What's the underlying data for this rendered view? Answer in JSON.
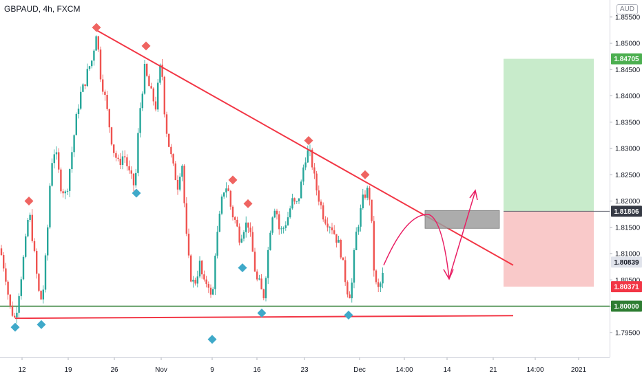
{
  "header": {
    "symbol_label": "GBPAUD, 4h, FXCM",
    "currency_button": "AUD"
  },
  "chart_data": {
    "type": "candlestick",
    "symbol": "GBPAUD",
    "interval": "4h",
    "source": "FXCM",
    "ylim": [
      1.7915,
      1.8555
    ],
    "y_ticks": [
      "1.79500",
      "1.80000",
      "1.80500",
      "1.81000",
      "1.81500",
      "1.82000",
      "1.82500",
      "1.83000",
      "1.83500",
      "1.84000",
      "1.84500",
      "1.85000",
      "1.85500"
    ],
    "x_ticks": [
      "12",
      "19",
      "26",
      "Nov",
      "9",
      "16",
      "23",
      "Dec",
      "14:00",
      "14",
      "21",
      "14:00",
      "2021"
    ],
    "price_labels": [
      {
        "label": "1.84705",
        "value": 1.84705,
        "color": "#4caf50"
      },
      {
        "label": "1.81806",
        "value": 1.81806,
        "color": "#363a45"
      },
      {
        "label": "1.80839",
        "value": 1.80839,
        "color": "#e0e3eb"
      },
      {
        "label": "1.80371",
        "value": 1.80371,
        "color": "#f23645"
      },
      {
        "label": "1.80000",
        "value": 1.8,
        "color": "#2e7d32"
      }
    ],
    "candle_colors": {
      "up": "#26a69a",
      "down": "#ef5350"
    },
    "path_closes": [
      [
        0,
        1.811
      ],
      [
        8,
        1.806
      ],
      [
        14,
        1.8
      ],
      [
        22,
        1.7975
      ],
      [
        30,
        1.805
      ],
      [
        38,
        1.813
      ],
      [
        42,
        1.8185
      ],
      [
        48,
        1.812
      ],
      [
        54,
        1.805
      ],
      [
        58,
        1.801
      ],
      [
        62,
        1.802
      ],
      [
        68,
        1.812
      ],
      [
        74,
        1.827
      ],
      [
        80,
        1.83
      ],
      [
        88,
        1.823
      ],
      [
        96,
        1.821
      ],
      [
        104,
        1.829
      ],
      [
        110,
        1.835
      ],
      [
        116,
        1.84
      ],
      [
        122,
        1.842
      ],
      [
        128,
        1.845
      ],
      [
        134,
        1.847
      ],
      [
        140,
        1.8525
      ],
      [
        146,
        1.844
      ],
      [
        152,
        1.84
      ],
      [
        158,
        1.835
      ],
      [
        164,
        1.83
      ],
      [
        172,
        1.827
      ],
      [
        180,
        1.829
      ],
      [
        188,
        1.825
      ],
      [
        196,
        1.8225
      ],
      [
        202,
        1.836
      ],
      [
        210,
        1.845
      ],
      [
        218,
        1.841
      ],
      [
        226,
        1.838
      ],
      [
        234,
        1.847
      ],
      [
        240,
        1.835
      ],
      [
        246,
        1.83
      ],
      [
        252,
        1.826
      ],
      [
        258,
        1.823
      ],
      [
        264,
        1.828
      ],
      [
        270,
        1.814
      ],
      [
        276,
        1.806
      ],
      [
        282,
        1.804
      ],
      [
        290,
        1.808
      ],
      [
        296,
        1.804
      ],
      [
        302,
        1.805
      ],
      [
        308,
        1.8
      ],
      [
        312,
        1.81
      ],
      [
        318,
        1.816
      ],
      [
        324,
        1.822
      ],
      [
        330,
        1.823
      ],
      [
        336,
        1.818
      ],
      [
        342,
        1.816
      ],
      [
        348,
        1.813
      ],
      [
        354,
        1.815
      ],
      [
        360,
        1.816
      ],
      [
        366,
        1.811
      ],
      [
        372,
        1.805
      ],
      [
        378,
        1.804
      ],
      [
        382,
        1.801
      ],
      [
        388,
        1.809
      ],
      [
        394,
        1.817
      ],
      [
        400,
        1.8195
      ],
      [
        406,
        1.814
      ],
      [
        412,
        1.815
      ],
      [
        418,
        1.817
      ],
      [
        424,
        1.82
      ],
      [
        430,
        1.819
      ],
      [
        436,
        1.822
      ],
      [
        442,
        1.828
      ],
      [
        448,
        1.8295
      ],
      [
        452,
        1.828
      ],
      [
        458,
        1.823
      ],
      [
        464,
        1.82
      ],
      [
        470,
        1.817
      ],
      [
        476,
        1.816
      ],
      [
        482,
        1.815
      ],
      [
        488,
        1.813
      ],
      [
        494,
        1.811
      ],
      [
        500,
        1.806
      ],
      [
        506,
        1.802
      ],
      [
        510,
        1.803
      ],
      [
        516,
        1.813
      ],
      [
        522,
        1.817
      ],
      [
        528,
        1.821
      ],
      [
        534,
        1.822
      ],
      [
        538,
        1.82
      ],
      [
        542,
        1.808
      ],
      [
        546,
        1.804
      ],
      [
        550,
        1.803
      ],
      [
        556,
        1.806
      ],
      [
        558,
        1.807
      ]
    ],
    "annotations": {
      "resistance_line": {
        "from": [
          140,
          1.8525
        ],
        "to": [
          745,
          1.8078
        ],
        "color": "#f23645"
      },
      "support_line": {
        "from": [
          22,
          1.7977
        ],
        "to": [
          745,
          1.7982
        ],
        "color": "#f23645"
      },
      "support_level": {
        "value": 1.8,
        "color": "#2e7d32"
      },
      "entry_zone": {
        "from": [
          617,
          1.8182
        ],
        "to": [
          725,
          1.8148
        ]
      },
      "position": {
        "type": "short",
        "entry": 1.81806,
        "stop": 1.84705,
        "target": 1.80371
      }
    },
    "pivot_highs": [
      [
        42,
        1.82
      ],
      [
        140,
        1.853
      ],
      [
        212,
        1.8495
      ],
      [
        338,
        1.824
      ],
      [
        360,
        1.8195
      ],
      [
        448,
        1.8315
      ],
      [
        530,
        1.825
      ]
    ],
    "pivot_lows": [
      [
        22,
        1.796
      ],
      [
        60,
        1.7965
      ],
      [
        198,
        1.8215
      ],
      [
        308,
        1.7937
      ],
      [
        352,
        1.8073
      ],
      [
        380,
        1.7987
      ],
      [
        506,
        1.7983
      ]
    ]
  }
}
